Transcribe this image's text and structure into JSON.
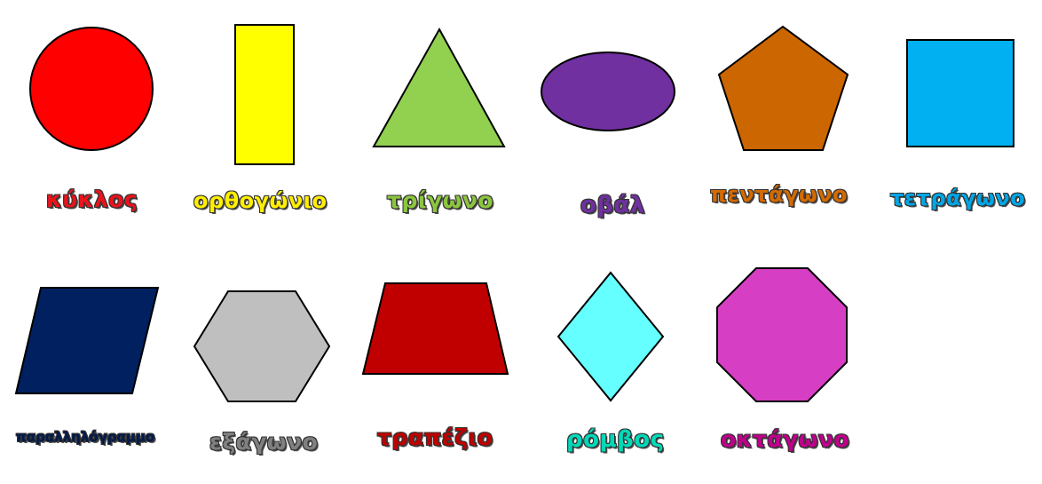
{
  "shapes": [
    {
      "id": "circle",
      "label": "κύκλος",
      "fill": "#ff0000",
      "label_color": "#e8141c"
    },
    {
      "id": "rectangle",
      "label": "ορθογώνιο",
      "fill": "#ffff00",
      "label_color": "#ffef00"
    },
    {
      "id": "triangle",
      "label": "τρίγωνο",
      "fill": "#92d050",
      "label_color": "#8cc63f"
    },
    {
      "id": "oval",
      "label": "οβάλ",
      "fill": "#7030a0",
      "label_color": "#7030a0"
    },
    {
      "id": "pentagon",
      "label": "πεντάγωνο",
      "fill": "#cc6600",
      "label_color": "#d46a00"
    },
    {
      "id": "square",
      "label": "τετράγωνο",
      "fill": "#00b0f0",
      "label_color": "#00a6e6"
    },
    {
      "id": "parallelogram",
      "label": "παραλληλόγραμμο",
      "fill": "#002060",
      "label_color": "#001a4d"
    },
    {
      "id": "hexagon",
      "label": "εξάγωνο",
      "fill": "#bfbfbf",
      "label_color": "#808080"
    },
    {
      "id": "trapezoid",
      "label": "τραπέζιο",
      "fill": "#c00000",
      "label_color": "#c00000"
    },
    {
      "id": "rhombus",
      "label": "ρόμβος",
      "fill": "#66ffff",
      "label_color": "#00d9b8"
    },
    {
      "id": "octagon",
      "label": "οκτάγωνο",
      "fill": "#d63ec4",
      "label_color": "#c0008c"
    }
  ]
}
